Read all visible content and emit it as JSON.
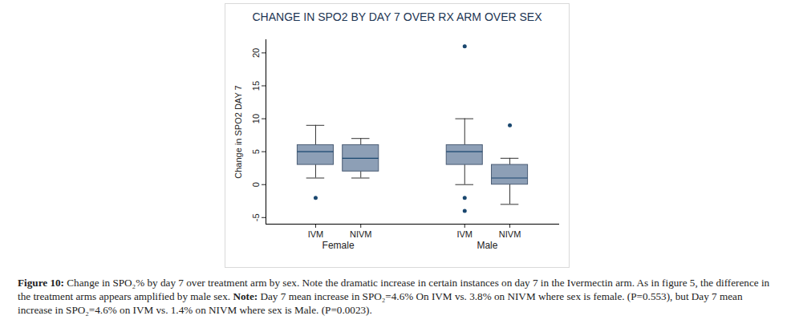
{
  "chart_data": {
    "type": "box",
    "title": "CHANGE IN SPO2 BY DAY 7 OVER RX ARM OVER SEX",
    "y_label": "Change in SPO2 DAY 7",
    "ylim": [
      -6,
      22
    ],
    "yticks": [
      -5,
      0,
      5,
      10,
      15,
      20
    ],
    "grid": false,
    "color": "#8d9fb6",
    "groups": [
      {
        "name": "Female",
        "boxes": [
          {
            "category": "IVM",
            "whisker_low": 1,
            "q1": 3,
            "median": 5,
            "q3": 6,
            "whisker_high": 9,
            "outliers": [
              -2
            ]
          },
          {
            "category": "NIVM",
            "whisker_low": 1,
            "q1": 2,
            "median": 4,
            "q3": 6,
            "whisker_high": 7,
            "outliers": []
          }
        ]
      },
      {
        "name": "Male",
        "boxes": [
          {
            "category": "IVM",
            "whisker_low": 0,
            "q1": 3,
            "median": 5,
            "q3": 6,
            "whisker_high": 10,
            "outliers": [
              21,
              -2,
              -4
            ]
          },
          {
            "category": "NIVM",
            "whisker_low": -3,
            "q1": 0,
            "median": 1,
            "q3": 3,
            "whisker_high": 4,
            "outliers": [
              9
            ]
          }
        ]
      }
    ]
  },
  "caption": [
    {
      "text": "Figure 10:",
      "bold": true
    },
    {
      "text": " Change in SPO₂% by day 7 over treatment arm by sex. Note the dramatic increase in certain instances on day 7 in the Ivermectin arm. As in figure 5, the difference in the treatment arms appears amplified by male sex. ",
      "bold": false
    },
    {
      "text": "Note:",
      "bold": true
    },
    {
      "text": " Day 7 mean increase in SPO₂=4.6% On IVM vs. 3.8% on NIVM where sex is female. (P=0.553), but Day 7 mean increase in SPO₂=4.6% on IVM vs. 1.4% on NIVM where sex is Male. (P=0.0023).",
      "bold": false
    }
  ]
}
